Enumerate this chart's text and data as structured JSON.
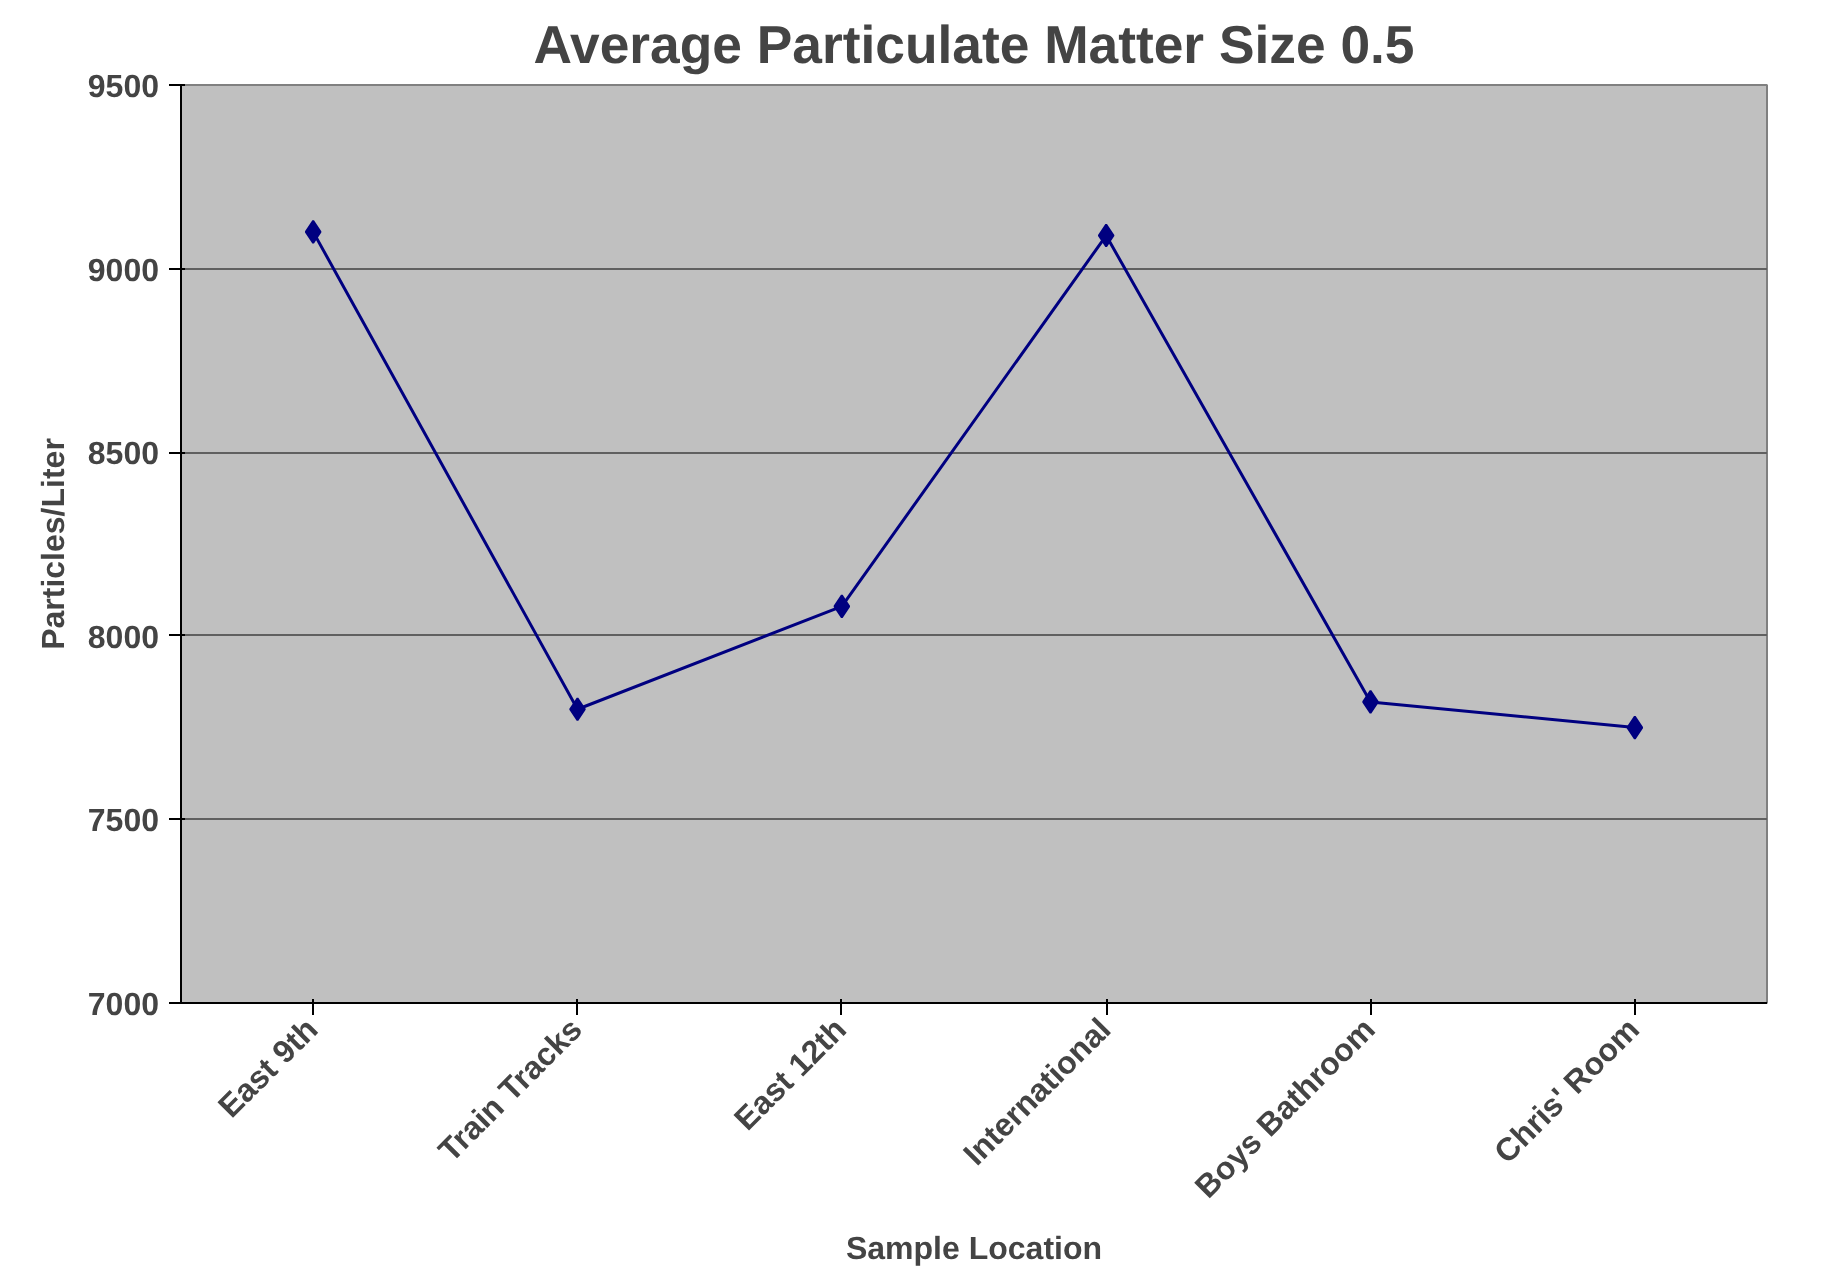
{
  "chart_data": {
    "type": "line",
    "title": "Average Particulate Matter Size 0.5",
    "xlabel": "Sample Location",
    "ylabel": "Particles/Liter",
    "categories": [
      "East 9th",
      "Train Tracks",
      "East 12th",
      "International",
      "Boys Bathroom",
      "Chris' Room"
    ],
    "series": [
      {
        "color": "#000080",
        "values": [
          9100,
          7800,
          8080,
          9090,
          7820,
          7750
        ]
      }
    ],
    "ylim": [
      7000,
      9500
    ],
    "yticks": [
      7000,
      7500,
      8000,
      8500,
      9000,
      9500
    ],
    "grid": "y",
    "marker": "diamond",
    "line_style": "solid"
  }
}
